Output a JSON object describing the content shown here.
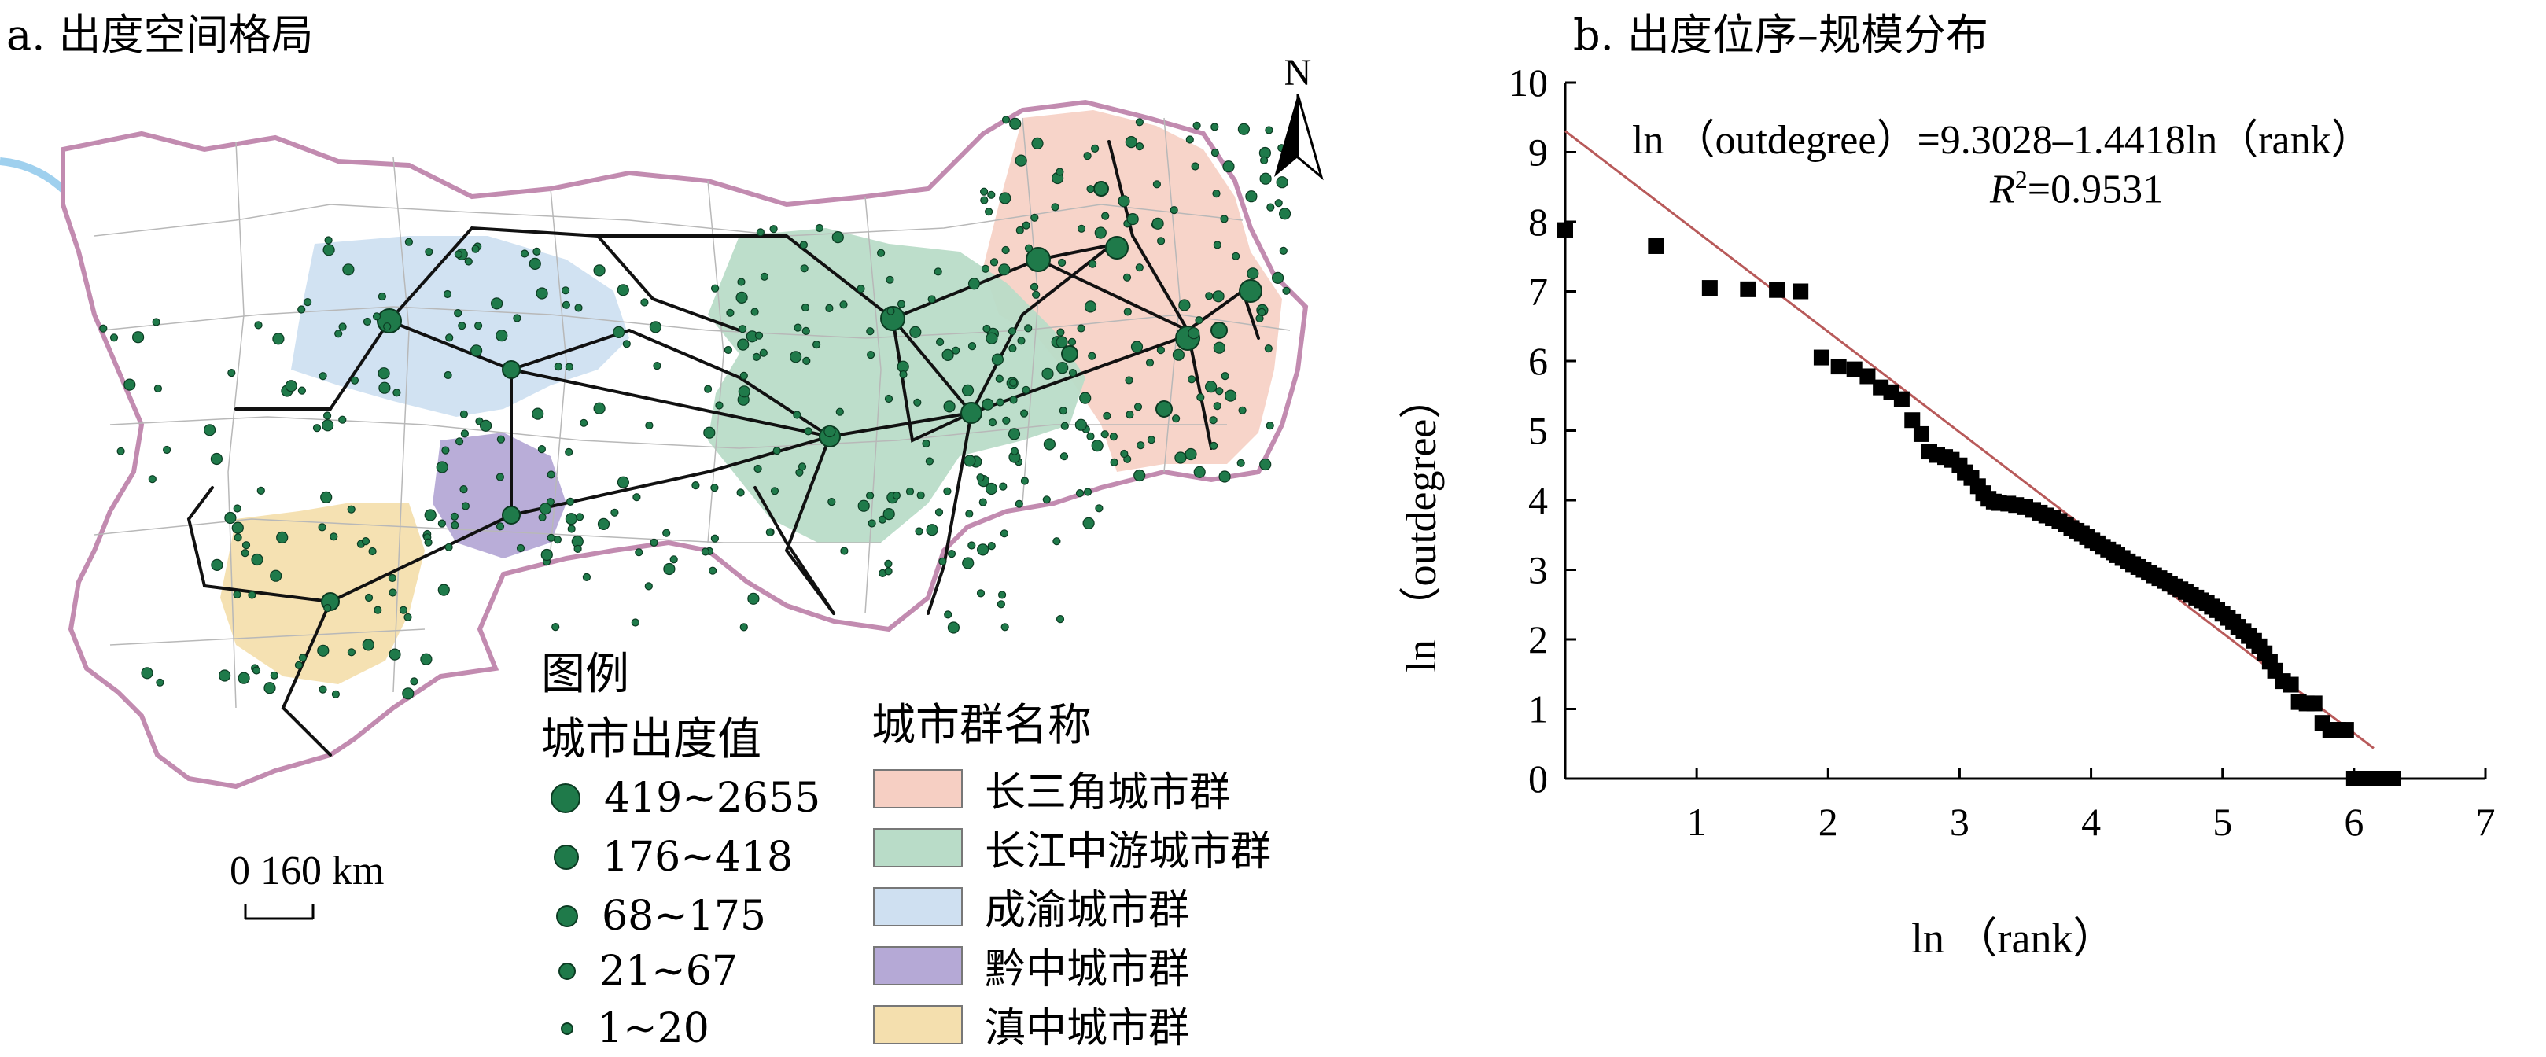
{
  "panel_a": {
    "title": "a. 出度空间格局",
    "north_label": "N",
    "scale_label": "0 160 km",
    "legend": {
      "heading": "图例",
      "size_title": "城市出度值",
      "size_items": [
        {
          "label": "419~2655"
        },
        {
          "label": "176~418"
        },
        {
          "label": "68~175"
        },
        {
          "label": "21~67"
        },
        {
          "label": "1~20"
        }
      ],
      "region_title": "城市群名称",
      "regions": [
        {
          "label": "长三角城市群",
          "color": "#f6cfc3"
        },
        {
          "label": "长江中游城市群",
          "color": "#b9dcc8"
        },
        {
          "label": "成渝城市群",
          "color": "#cfe0f1"
        },
        {
          "label": "黔中城市群",
          "color": "#b5a9d6"
        },
        {
          "label": "滇中城市群",
          "color": "#f4dfae"
        }
      ]
    },
    "colors": {
      "node": "#1f7a4a",
      "node_edge": "#0b3b22",
      "boundary": "#c28bb0",
      "river": "#9fd0ee",
      "links": "#111111"
    }
  },
  "panel_b": {
    "title": "b. 出度位序–规模分布",
    "equation": "ln （outdegree）=9.3028–1.4418ln（rank）",
    "r2_label": "R",
    "r2_sup": "2",
    "r2_value": "=0.9531",
    "chart_data": {
      "type": "scatter",
      "title": "b. 出度位序–规模分布",
      "xlabel": "ln （rank）",
      "ylabel": "ln （outdegree）",
      "xlim": [
        0,
        7
      ],
      "ylim": [
        0,
        10
      ],
      "x_ticks": [
        "1",
        "2",
        "3",
        "4",
        "5",
        "6",
        "7"
      ],
      "y_ticks": [
        "0",
        "1",
        "2",
        "3",
        "4",
        "5",
        "6",
        "7",
        "8",
        "9",
        "10"
      ],
      "fit": {
        "intercept": 9.3028,
        "slope": -1.4418,
        "r2": 0.9531,
        "color": "#b85a5a"
      },
      "marker_color": "#000000",
      "points": [
        [
          0.0,
          7.88
        ],
        [
          0.69,
          7.65
        ],
        [
          1.1,
          7.05
        ],
        [
          1.39,
          7.03
        ],
        [
          1.61,
          7.02
        ],
        [
          1.79,
          7.0
        ],
        [
          1.95,
          6.05
        ],
        [
          2.08,
          5.92
        ],
        [
          2.2,
          5.88
        ],
        [
          2.3,
          5.78
        ],
        [
          2.4,
          5.62
        ],
        [
          2.48,
          5.55
        ],
        [
          2.56,
          5.45
        ],
        [
          2.64,
          5.15
        ],
        [
          2.71,
          4.95
        ],
        [
          2.77,
          4.7
        ],
        [
          2.83,
          4.65
        ],
        [
          2.89,
          4.62
        ],
        [
          2.94,
          4.58
        ],
        [
          3.0,
          4.5
        ],
        [
          3.04,
          4.4
        ],
        [
          3.09,
          4.32
        ],
        [
          3.14,
          4.2
        ],
        [
          3.18,
          4.1
        ],
        [
          3.22,
          4.02
        ],
        [
          3.26,
          3.98
        ],
        [
          3.3,
          3.96
        ],
        [
          3.37,
          3.95
        ],
        [
          3.43,
          3.93
        ],
        [
          3.5,
          3.9
        ],
        [
          3.56,
          3.86
        ],
        [
          3.61,
          3.82
        ],
        [
          3.66,
          3.78
        ],
        [
          3.71,
          3.74
        ],
        [
          3.76,
          3.7
        ],
        [
          3.81,
          3.65
        ],
        [
          3.85,
          3.6
        ],
        [
          3.89,
          3.56
        ],
        [
          3.93,
          3.52
        ],
        [
          3.97,
          3.47
        ],
        [
          4.01,
          3.42
        ],
        [
          4.05,
          3.38
        ],
        [
          4.09,
          3.33
        ],
        [
          4.13,
          3.29
        ],
        [
          4.17,
          3.25
        ],
        [
          4.2,
          3.21
        ],
        [
          4.24,
          3.17
        ],
        [
          4.28,
          3.12
        ],
        [
          4.32,
          3.08
        ],
        [
          4.36,
          3.04
        ],
        [
          4.4,
          3.0
        ],
        [
          4.44,
          2.96
        ],
        [
          4.48,
          2.92
        ],
        [
          4.52,
          2.88
        ],
        [
          4.56,
          2.84
        ],
        [
          4.6,
          2.8
        ],
        [
          4.64,
          2.76
        ],
        [
          4.68,
          2.72
        ],
        [
          4.72,
          2.68
        ],
        [
          4.76,
          2.64
        ],
        [
          4.8,
          2.6
        ],
        [
          4.84,
          2.56
        ],
        [
          4.88,
          2.52
        ],
        [
          4.92,
          2.47
        ],
        [
          4.96,
          2.42
        ],
        [
          5.0,
          2.37
        ],
        [
          5.04,
          2.31
        ],
        [
          5.08,
          2.25
        ],
        [
          5.12,
          2.18
        ],
        [
          5.16,
          2.12
        ],
        [
          5.2,
          2.05
        ],
        [
          5.24,
          1.98
        ],
        [
          5.28,
          1.9
        ],
        [
          5.32,
          1.8
        ],
        [
          5.36,
          1.68
        ],
        [
          5.4,
          1.55
        ],
        [
          5.46,
          1.4
        ],
        [
          5.52,
          1.35
        ],
        [
          5.58,
          1.1
        ],
        [
          5.64,
          1.08
        ],
        [
          5.7,
          1.08
        ],
        [
          5.76,
          0.8
        ],
        [
          5.82,
          0.7
        ],
        [
          5.88,
          0.7
        ],
        [
          5.94,
          0.7
        ],
        [
          6.0,
          0.0
        ],
        [
          6.06,
          0.0
        ],
        [
          6.12,
          0.0
        ],
        [
          6.18,
          0.0
        ],
        [
          6.24,
          0.0
        ],
        [
          6.3,
          0.0
        ]
      ]
    }
  }
}
